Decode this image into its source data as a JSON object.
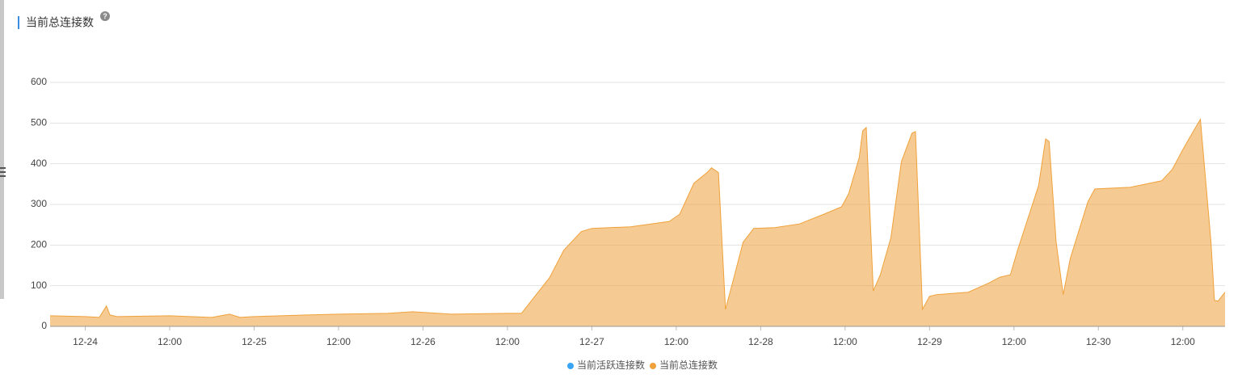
{
  "chart_data": {
    "type": "area",
    "title": "当前总连接数",
    "x": [
      "12-23 19:00",
      "12-24 00:00",
      "12-24 02:00",
      "12-24 03:00",
      "12-24 03:30",
      "12-24 04:30",
      "12-24 12:00",
      "12-24 18:00",
      "12-24 20:30",
      "12-24 22:00",
      "12-25 00:00",
      "12-25 07:30",
      "12-25 12:00",
      "12-25 19:00",
      "12-25 22:30",
      "12-26 04:00",
      "12-26 12:00",
      "12-26 14:00",
      "12-26 18:00",
      "12-26 20:00",
      "12-26 22:30",
      "12-27 00:00",
      "12-27 05:30",
      "12-27 11:00",
      "12-27 12:30",
      "12-27 14:30",
      "12-27 16:30",
      "12-27 17:00",
      "12-27 18:00",
      "12-27 18:30",
      "12-27 19:00",
      "12-27 20:00",
      "12-27 21:30",
      "12-27 23:00",
      "12-28 02:00",
      "12-28 05:30",
      "12-28 09:00",
      "12-28 11:30",
      "12-28 12:30",
      "12-28 14:00",
      "12-28 14:30",
      "12-28 15:00",
      "12-28 16:00",
      "12-28 17:00",
      "12-28 18:30",
      "12-28 20:00",
      "12-28 21:30",
      "12-28 22:00",
      "12-28 23:00",
      "12-29 00:00",
      "12-29 01:00",
      "12-29 05:30",
      "12-29 08:30",
      "12-29 10:00",
      "12-29 11:30",
      "12-29 12:30",
      "12-29 15:30",
      "12-29 16:30",
      "12-29 17:00",
      "12-29 18:00",
      "12-29 19:00",
      "12-29 20:00",
      "12-29 22:30",
      "12-29 23:30",
      "12-30 04:30",
      "12-30 09:00",
      "12-30 10:30",
      "12-30 12:00",
      "12-30 14:00",
      "12-30 14:30",
      "12-30 16:00",
      "12-30 16:30",
      "12-30 17:00",
      "12-30 18:00"
    ],
    "series": [
      {
        "name": "当前活跃连接数",
        "color": "#3ba5f5",
        "values": [
          0,
          0,
          0,
          0,
          0,
          0,
          0,
          0,
          0,
          0,
          0,
          0,
          0,
          0,
          0,
          0,
          0,
          0,
          0,
          0,
          0,
          0,
          0,
          0,
          0,
          0,
          0,
          0,
          0,
          0,
          0,
          0,
          0,
          0,
          0,
          0,
          0,
          0,
          0,
          0,
          0,
          0,
          0,
          0,
          0,
          0,
          0,
          0,
          0,
          0,
          0,
          0,
          0,
          0,
          0,
          0,
          0,
          0,
          0,
          0,
          0,
          0,
          0,
          0,
          0,
          0,
          0,
          0,
          0,
          0,
          0,
          0,
          0,
          0
        ]
      },
      {
        "name": "当前总连接数",
        "color": "#efa13a",
        "values": [
          26,
          24,
          22,
          50,
          28,
          24,
          26,
          22,
          30,
          22,
          24,
          28,
          30,
          32,
          36,
          30,
          32,
          32,
          120,
          187,
          233,
          241,
          245,
          258,
          276,
          352,
          380,
          390,
          378,
          207,
          42,
          107,
          207,
          241,
          243,
          252,
          276,
          294,
          326,
          415,
          481,
          489,
          87,
          127,
          217,
          405,
          475,
          479,
          42,
          74,
          78,
          84,
          107,
          121,
          127,
          187,
          346,
          461,
          455,
          207,
          78,
          167,
          306,
          338,
          342,
          358,
          386,
          435,
          495,
          509,
          207,
          64,
          62,
          84
        ]
      }
    ],
    "xlim": [
      "12-23 19:00",
      "12-30 18:00"
    ],
    "xticks": [
      {
        "value": "12-24 00:00",
        "label": "12-24"
      },
      {
        "value": "12-24 12:00",
        "label": "12:00"
      },
      {
        "value": "12-25 00:00",
        "label": "12-25"
      },
      {
        "value": "12-25 12:00",
        "label": "12:00"
      },
      {
        "value": "12-26 00:00",
        "label": "12-26"
      },
      {
        "value": "12-26 12:00",
        "label": "12:00"
      },
      {
        "value": "12-27 00:00",
        "label": "12-27"
      },
      {
        "value": "12-27 12:00",
        "label": "12:00"
      },
      {
        "value": "12-28 00:00",
        "label": "12-28"
      },
      {
        "value": "12-28 12:00",
        "label": "12:00"
      },
      {
        "value": "12-29 00:00",
        "label": "12-29"
      },
      {
        "value": "12-29 12:00",
        "label": "12:00"
      },
      {
        "value": "12-30 00:00",
        "label": "12-30"
      },
      {
        "value": "12-30 12:00",
        "label": "12:00"
      }
    ],
    "ylim": [
      0,
      600
    ],
    "yticks": [
      0,
      100,
      200,
      300,
      400,
      500,
      600
    ],
    "grid": true,
    "legend": "bottom"
  }
}
